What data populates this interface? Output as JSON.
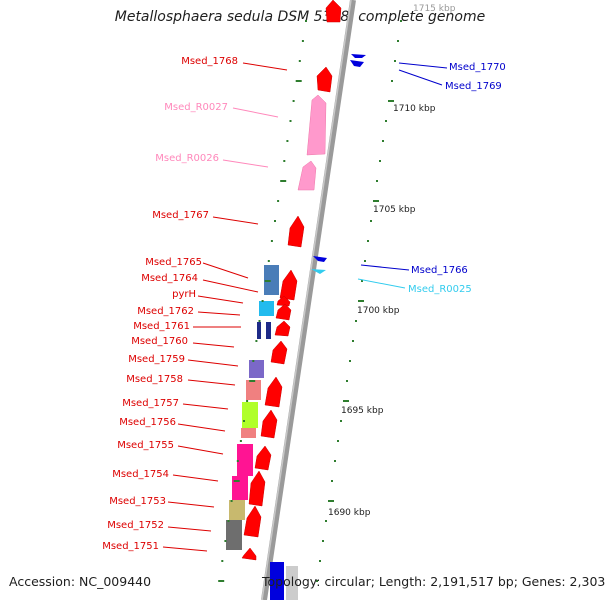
{
  "title": "Metallosphaera sedula DSM 5348, complete genome",
  "footer": {
    "accession": "Accession: NC_009440",
    "topology": "Topology: circular; Length: 2,191,517 bp; Genes: 2,303"
  },
  "colors": {
    "forward_gene": "#ff0000",
    "reverse_gene": "#0000cc",
    "rna_label": "#ff88bb",
    "trna_label": "#33ccee",
    "tick": "#2e7d2e",
    "backbone": "#888888"
  },
  "scale_labels": [
    "1715 kbp",
    "1710 kbp",
    "1705 kbp",
    "1700 kbp",
    "1695 kbp",
    "1690 kbp"
  ],
  "labels_left": [
    {
      "text": "Msed_1768",
      "color": "#dd0000"
    },
    {
      "text": "Msed_R0027",
      "color": "#ff88bb"
    },
    {
      "text": "Msed_R0026",
      "color": "#ff88bb"
    },
    {
      "text": "Msed_1767",
      "color": "#dd0000"
    },
    {
      "text": "Msed_1765",
      "color": "#dd0000"
    },
    {
      "text": "Msed_1764",
      "color": "#dd0000"
    },
    {
      "text": "pyrH",
      "color": "#dd0000"
    },
    {
      "text": "Msed_1762",
      "color": "#dd0000"
    },
    {
      "text": "Msed_1761",
      "color": "#dd0000"
    },
    {
      "text": "Msed_1760",
      "color": "#dd0000"
    },
    {
      "text": "Msed_1759",
      "color": "#dd0000"
    },
    {
      "text": "Msed_1758",
      "color": "#dd0000"
    },
    {
      "text": "Msed_1757",
      "color": "#dd0000"
    },
    {
      "text": "Msed_1756",
      "color": "#dd0000"
    },
    {
      "text": "Msed_1755",
      "color": "#dd0000"
    },
    {
      "text": "Msed_1754",
      "color": "#dd0000"
    },
    {
      "text": "Msed_1753",
      "color": "#dd0000"
    },
    {
      "text": "Msed_1752",
      "color": "#dd0000"
    },
    {
      "text": "Msed_1751",
      "color": "#dd0000"
    }
  ],
  "labels_right": [
    {
      "text": "Msed_1770",
      "color": "#0000cc"
    },
    {
      "text": "Msed_1769",
      "color": "#0000cc"
    },
    {
      "text": "Msed_1766",
      "color": "#0000cc"
    },
    {
      "text": "Msed_R0025",
      "color": "#33ccee"
    }
  ]
}
